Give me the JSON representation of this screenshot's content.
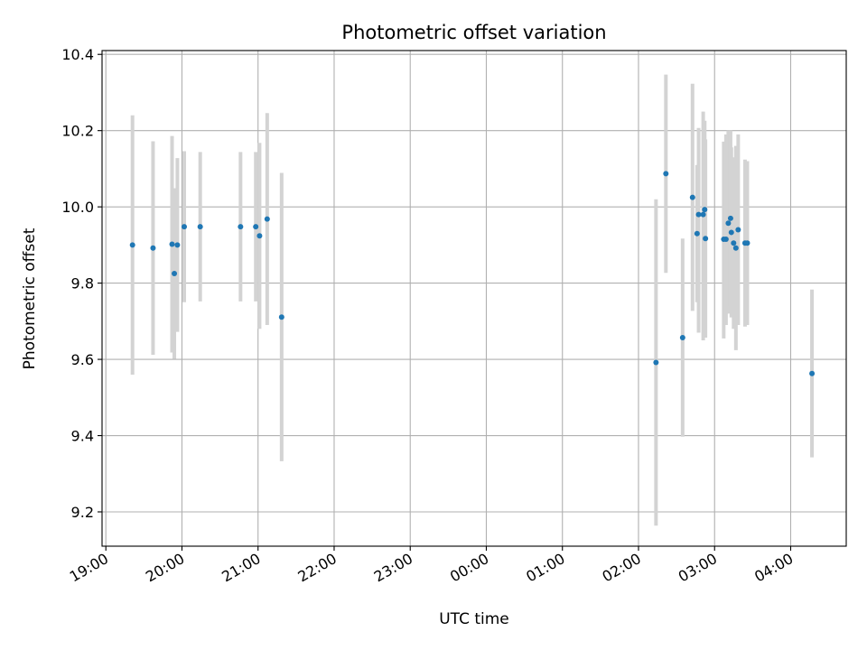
{
  "chart_data": {
    "type": "scatter",
    "title": "Photometric offset variation",
    "xlabel": "UTC time",
    "ylabel": "Photometric offset",
    "grid": true,
    "x_unit": "hours since 19:00 UTC",
    "xlim": [
      -0.05,
      9.73
    ],
    "ylim": [
      9.11,
      10.41
    ],
    "x_ticks": [
      {
        "value": 0,
        "label": "19:00"
      },
      {
        "value": 1,
        "label": "20:00"
      },
      {
        "value": 2,
        "label": "21:00"
      },
      {
        "value": 3,
        "label": "22:00"
      },
      {
        "value": 4,
        "label": "23:00"
      },
      {
        "value": 5,
        "label": "00:00"
      },
      {
        "value": 6,
        "label": "01:00"
      },
      {
        "value": 7,
        "label": "02:00"
      },
      {
        "value": 8,
        "label": "03:00"
      },
      {
        "value": 9,
        "label": "04:00"
      }
    ],
    "y_ticks": [
      {
        "value": 9.2,
        "label": "9.2"
      },
      {
        "value": 9.4,
        "label": "9.4"
      },
      {
        "value": 9.6,
        "label": "9.6"
      },
      {
        "value": 9.8,
        "label": "9.8"
      },
      {
        "value": 10.0,
        "label": "10.0"
      },
      {
        "value": 10.2,
        "label": "10.2"
      },
      {
        "value": 10.4,
        "label": "10.4"
      }
    ],
    "point_color": "#1f77b4",
    "errorbar_color": "#d3d3d3",
    "points": [
      {
        "x": 0.35,
        "y": 9.9,
        "lo": 9.56,
        "hi": 10.24
      },
      {
        "x": 0.62,
        "y": 9.892,
        "lo": 9.612,
        "hi": 10.172
      },
      {
        "x": 0.87,
        "y": 9.902,
        "lo": 9.618,
        "hi": 10.186
      },
      {
        "x": 0.9,
        "y": 9.825,
        "lo": 9.601,
        "hi": 10.049
      },
      {
        "x": 0.94,
        "y": 9.9,
        "lo": 9.672,
        "hi": 10.128
      },
      {
        "x": 1.03,
        "y": 9.948,
        "lo": 9.75,
        "hi": 10.146
      },
      {
        "x": 1.24,
        "y": 9.948,
        "lo": 9.752,
        "hi": 10.144
      },
      {
        "x": 1.77,
        "y": 9.948,
        "lo": 9.752,
        "hi": 10.144
      },
      {
        "x": 1.97,
        "y": 9.948,
        "lo": 9.752,
        "hi": 10.144
      },
      {
        "x": 2.02,
        "y": 9.924,
        "lo": 9.68,
        "hi": 10.168
      },
      {
        "x": 2.12,
        "y": 9.968,
        "lo": 9.69,
        "hi": 10.246
      },
      {
        "x": 2.31,
        "y": 9.711,
        "lo": 9.333,
        "hi": 10.089
      },
      {
        "x": 7.23,
        "y": 9.592,
        "lo": 9.164,
        "hi": 10.02
      },
      {
        "x": 7.36,
        "y": 10.087,
        "lo": 9.827,
        "hi": 10.347
      },
      {
        "x": 7.58,
        "y": 9.657,
        "lo": 9.397,
        "hi": 9.917
      },
      {
        "x": 7.71,
        "y": 10.025,
        "lo": 9.727,
        "hi": 10.323
      },
      {
        "x": 7.77,
        "y": 9.93,
        "lo": 9.75,
        "hi": 10.11
      },
      {
        "x": 7.79,
        "y": 9.98,
        "lo": 9.67,
        "hi": 10.207
      },
      {
        "x": 7.85,
        "y": 9.98,
        "lo": 9.65,
        "hi": 10.25
      },
      {
        "x": 7.87,
        "y": 9.993,
        "lo": 9.76,
        "hi": 10.226
      },
      {
        "x": 7.88,
        "y": 9.917,
        "lo": 9.657,
        "hi": 10.177
      },
      {
        "x": 8.12,
        "y": 9.915,
        "lo": 9.655,
        "hi": 10.171
      },
      {
        "x": 8.15,
        "y": 9.915,
        "lo": 9.69,
        "hi": 10.19
      },
      {
        "x": 8.18,
        "y": 9.957,
        "lo": 9.72,
        "hi": 10.2
      },
      {
        "x": 8.21,
        "y": 9.97,
        "lo": 9.74,
        "hi": 10.2
      },
      {
        "x": 8.22,
        "y": 9.933,
        "lo": 9.71,
        "hi": 10.156
      },
      {
        "x": 8.25,
        "y": 9.905,
        "lo": 9.68,
        "hi": 10.13
      },
      {
        "x": 8.28,
        "y": 9.892,
        "lo": 9.624,
        "hi": 10.16
      },
      {
        "x": 8.31,
        "y": 9.94,
        "lo": 9.69,
        "hi": 10.19
      },
      {
        "x": 8.4,
        "y": 9.905,
        "lo": 9.686,
        "hi": 10.124
      },
      {
        "x": 8.43,
        "y": 9.905,
        "lo": 9.69,
        "hi": 10.12
      },
      {
        "x": 9.28,
        "y": 9.563,
        "lo": 9.343,
        "hi": 9.783
      }
    ]
  }
}
